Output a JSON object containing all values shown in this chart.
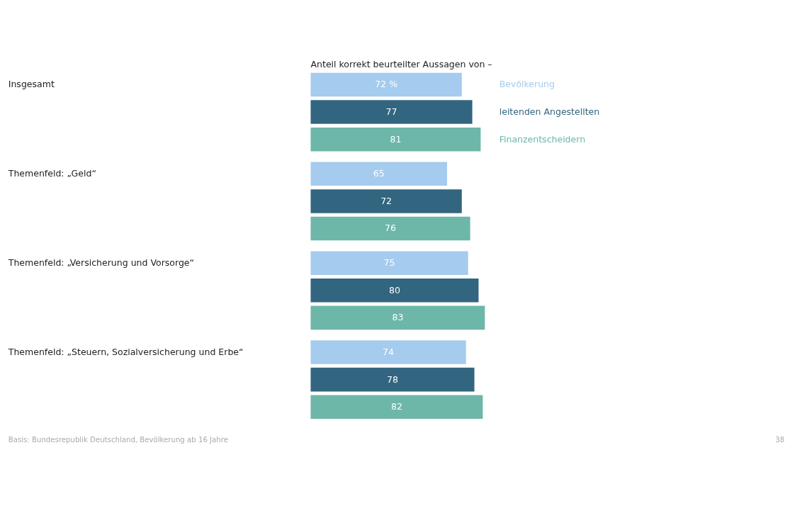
{
  "chart_data": {
    "type": "bar",
    "orientation": "horizontal",
    "title": "Anteil korrekt beurteilter Aussagen von –",
    "categories": [
      "Insgesamt",
      "Themenfeld: „Geld“",
      "Themenfeld: „Versicherung und Vorsorge“",
      "Themenfeld: „Steuern, Sozialversicherung und Erbe“"
    ],
    "series": [
      {
        "name": "Bevölkerung",
        "color": "#a5cbee",
        "values": [
          72,
          65,
          75,
          74
        ],
        "value_labels": [
          "72 %",
          "65",
          "75",
          "74"
        ]
      },
      {
        "name": "leitenden Angestellten",
        "color": "#326580",
        "values": [
          77,
          72,
          80,
          78
        ],
        "value_labels": [
          "77",
          "72",
          "80",
          "78"
        ]
      },
      {
        "name": "Finanzentscheidern",
        "color": "#6db7a9",
        "values": [
          81,
          76,
          83,
          82
        ],
        "value_labels": [
          "81",
          "76",
          "83",
          "82"
        ]
      }
    ],
    "legend": "top right",
    "tick_labels": false,
    "annotations": [
      "Basis: Bundesrepublik Deutschland, Bevölkerung ab 16 Jahre",
      "38"
    ]
  }
}
